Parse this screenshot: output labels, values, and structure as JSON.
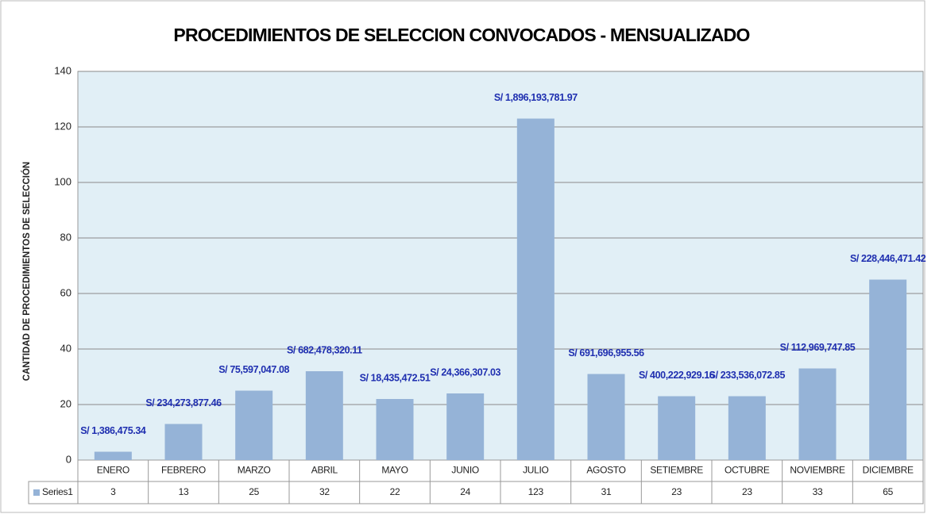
{
  "chart_data": {
    "type": "bar",
    "title": "PROCEDIMIENTOS DE SELECCION CONVOCADOS  - MENSUALIZADO",
    "y_label": "CANTIDAD DE PROCEDIMIENTOS DE SELECCIÓN",
    "categories": [
      "ENERO",
      "FEBRERO",
      "MARZO",
      "ABRIL",
      "MAYO",
      "JUNIO",
      "JULIO",
      "AGOSTO",
      "SETIEMBRE",
      "OCTUBRE",
      "NOVIEMBRE",
      "DICIEMBRE"
    ],
    "series": [
      {
        "name": "Series1",
        "color": "#95b3d7",
        "values": [
          3,
          13,
          25,
          32,
          22,
          24,
          123,
          31,
          23,
          23,
          33,
          65
        ]
      }
    ],
    "annotations": [
      "S/ 1,386,475.34",
      "S/ 234,273,877.46",
      "S/ 75,597,047.08",
      "S/ 682,478,320.11",
      "S/ 18,435,472.51",
      "S/ 24,366,307.03",
      "S/ 1,896,193,781.97",
      "S/ 691,696,955.56",
      "S/ 400,222,929.16",
      "S/ 233,536,072.85",
      "S/ 112,969,747.85",
      "S/ 228,446,471.42"
    ],
    "ylim": [
      0,
      140
    ],
    "yticks": [
      0,
      20,
      40,
      60,
      80,
      100,
      120,
      140
    ],
    "grid": true,
    "data_table": true
  }
}
